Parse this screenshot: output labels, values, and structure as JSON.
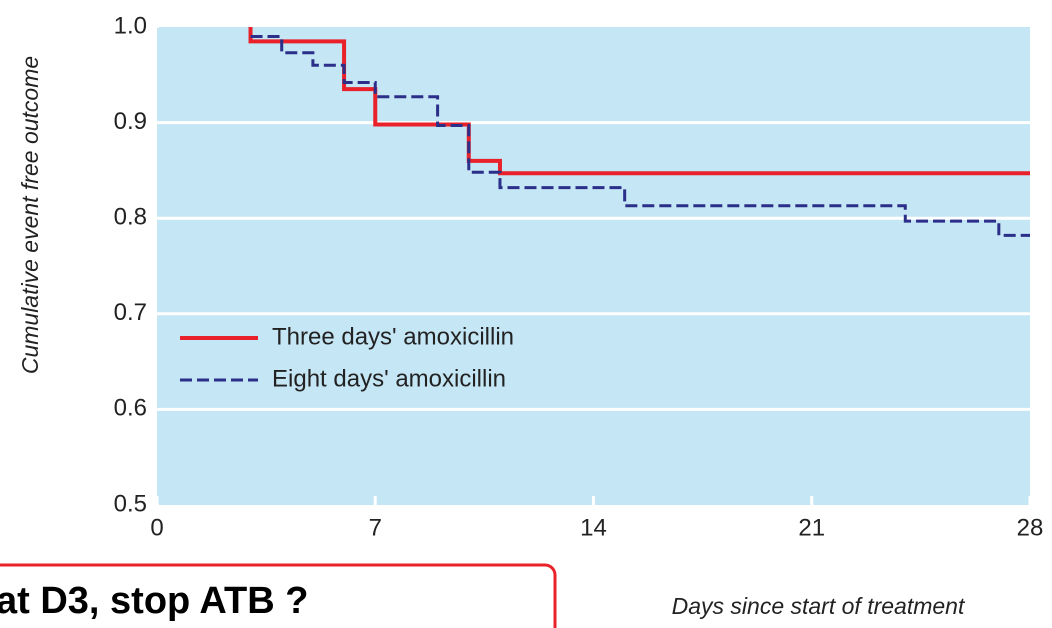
{
  "chart_data": {
    "type": "step",
    "y_label": "Cumulative event free outcome",
    "x_label": "Days since start of treatment",
    "annotation": "at D3, stop ATB ?",
    "xlim": [
      0,
      28
    ],
    "xticks": [
      0,
      7,
      14,
      21,
      28
    ],
    "ylim": [
      0.5,
      1.0
    ],
    "yticks": [
      {
        "value": 1,
        "label": "1.0"
      },
      0.9,
      0.8,
      0.7,
      0.6,
      0.5
    ],
    "grid": true,
    "background": "#c5e6f5",
    "legend": "lower-left",
    "series": [
      {
        "name": "Three days' amoxicillin",
        "color": "#e8212a",
        "dash": "solid",
        "x": [
          3,
          3,
          6,
          7,
          10,
          11,
          28
        ],
        "values": [
          1.0,
          0.985,
          0.935,
          0.898,
          0.86,
          0.847,
          0.847
        ]
      },
      {
        "name": "Eight days' amoxicillin",
        "color": "#2b2f8a",
        "dash": "dashed",
        "x": [
          3,
          4,
          5,
          6,
          7,
          9,
          10,
          11,
          15,
          24,
          27,
          28
        ],
        "values": [
          0.99,
          0.973,
          0.96,
          0.942,
          0.927,
          0.897,
          0.848,
          0.832,
          0.813,
          0.797,
          0.782,
          0.782
        ]
      }
    ]
  }
}
